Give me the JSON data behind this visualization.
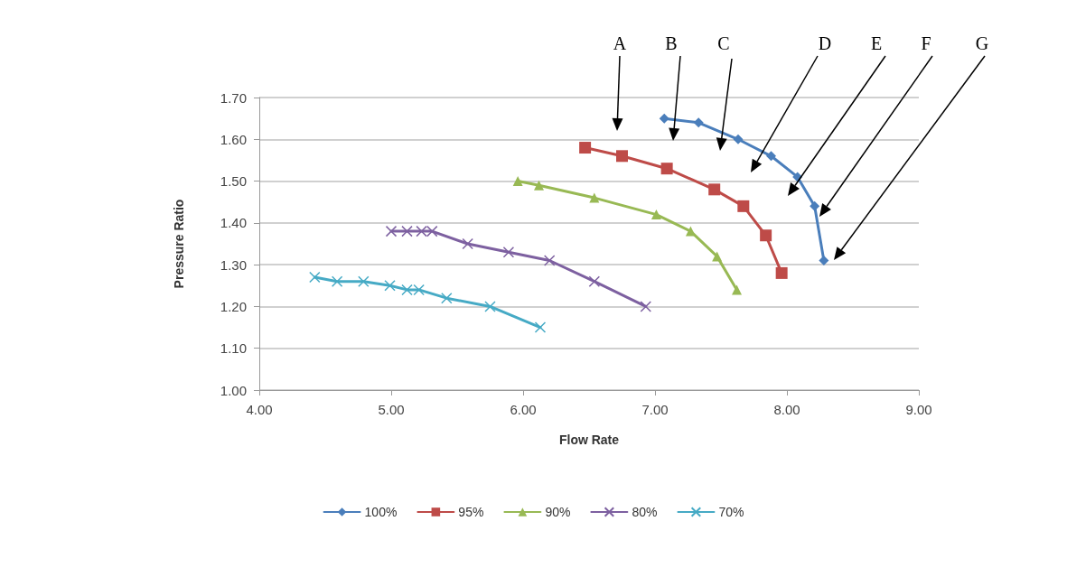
{
  "chart_data": {
    "type": "line",
    "xlabel": "Flow Rate",
    "ylabel": "Pressure Ratio",
    "xlim": [
      4,
      9
    ],
    "xticks": [
      {
        "value": 4,
        "label": "4.00"
      },
      {
        "value": 5,
        "label": "5.00"
      },
      {
        "value": 6,
        "label": "6.00"
      },
      {
        "value": 7,
        "label": "7.00"
      },
      {
        "value": 8,
        "label": "8.00"
      },
      {
        "value": 9,
        "label": "9.00"
      }
    ],
    "ylim": [
      1,
      1.7
    ],
    "yticks": [
      {
        "value": 1,
        "label": "1.00"
      },
      {
        "value": 1.1,
        "label": "1.10"
      },
      {
        "value": 1.2,
        "label": "1.20"
      },
      {
        "value": 1.3,
        "label": "1.30"
      },
      {
        "value": 1.4,
        "label": "1.40"
      },
      {
        "value": 1.5,
        "label": "1.50"
      },
      {
        "value": 1.6,
        "label": "1.60"
      },
      {
        "value": 1.7,
        "label": "1.70"
      }
    ],
    "grid": "y",
    "legend": "bottom",
    "line_style": "solid",
    "series": [
      {
        "name": "100%",
        "color": "#4a7ebb",
        "marker": "diamond",
        "x": [
          7.07,
          7.33,
          7.63,
          7.88,
          8.08,
          8.21,
          8.28
        ],
        "values": [
          1.65,
          1.64,
          1.6,
          1.56,
          1.51,
          1.44,
          1.31
        ]
      },
      {
        "name": "95%",
        "color": "#be4b48",
        "marker": "square",
        "x": [
          6.47,
          6.75,
          7.09,
          7.45,
          7.67,
          7.84,
          7.96
        ],
        "values": [
          1.58,
          1.56,
          1.53,
          1.48,
          1.44,
          1.37,
          1.28
        ]
      },
      {
        "name": "90%",
        "color": "#98b954",
        "marker": "triangle",
        "x": [
          5.96,
          6.12,
          6.54,
          7.01,
          7.27,
          7.47,
          7.62
        ],
        "values": [
          1.5,
          1.49,
          1.46,
          1.42,
          1.38,
          1.32,
          1.24
        ]
      },
      {
        "name": "80%",
        "color": "#7d60a0",
        "marker": "cross",
        "x": [
          5.0,
          5.12,
          5.23,
          5.31,
          5.58,
          5.89,
          6.2,
          6.54,
          6.93
        ],
        "values": [
          1.38,
          1.38,
          1.38,
          1.38,
          1.35,
          1.33,
          1.31,
          1.26,
          1.2
        ]
      },
      {
        "name": "70%",
        "color": "#46aac5",
        "marker": "cross",
        "x": [
          4.42,
          4.59,
          4.79,
          4.99,
          5.12,
          5.21,
          5.42,
          5.75,
          6.13
        ],
        "values": [
          1.27,
          1.26,
          1.26,
          1.25,
          1.24,
          1.24,
          1.22,
          1.2,
          1.15
        ]
      }
    ],
    "annotations": [
      "A",
      "B",
      "C",
      "D",
      "E",
      "F",
      "G"
    ]
  }
}
